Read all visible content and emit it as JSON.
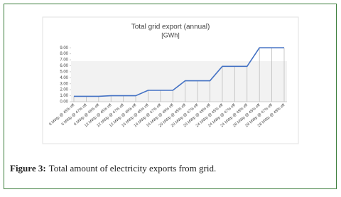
{
  "chart_data": {
    "type": "line",
    "title": "Total grid export (annual)",
    "subtitle": "[GWh]",
    "categories": [
      "6 MWp @ 45% eff",
      "6 MWp @ 47% eff",
      "6 MWp @ 48% eff",
      "12 MWp @ 45% eff",
      "12 MWp @ 47% eff",
      "12 MWp @ 48% eff",
      "16 MWp @ 45% eff",
      "16 MWp @ 47% eff",
      "16 MWp @ 48% eff",
      "20 MWp @ 45% eff",
      "20 MWp @ 47% eff",
      "20 MWp @ 48% eff",
      "24 MWp @ 45% eff",
      "24 MWp @ 47% eff",
      "24 MWp @ 48% eff",
      "28 MWp @ 45% eff",
      "28 MWp @ 47% eff",
      "28 MWp @ 48% eff"
    ],
    "series": [
      {
        "color": "#4472c4",
        "values": [
          0.9,
          0.9,
          0.9,
          1.0,
          1.0,
          1.0,
          1.9,
          1.9,
          1.9,
          3.5,
          3.5,
          3.5,
          5.9,
          5.9,
          5.9,
          9.0,
          9.0,
          9.0
        ]
      }
    ],
    "ylim": [
      0,
      9.5
    ],
    "yticks": [
      {
        "value": 0,
        "label": "0.00"
      },
      {
        "value": 1,
        "label": "1.00"
      },
      {
        "value": 2,
        "label": "2.00"
      },
      {
        "value": 3,
        "label": "3.00"
      },
      {
        "value": 4,
        "label": "4.00"
      },
      {
        "value": 5,
        "label": "5.00"
      },
      {
        "value": 6,
        "label": "6.00"
      },
      {
        "value": 7,
        "label": "7.00"
      },
      {
        "value": 8,
        "label": "8.00"
      },
      {
        "value": 9,
        "label": "9.00"
      }
    ],
    "drop_lines": true
  },
  "figure": {
    "label": "Figure 3:",
    "caption": "Total amount of electricity exports from grid."
  }
}
